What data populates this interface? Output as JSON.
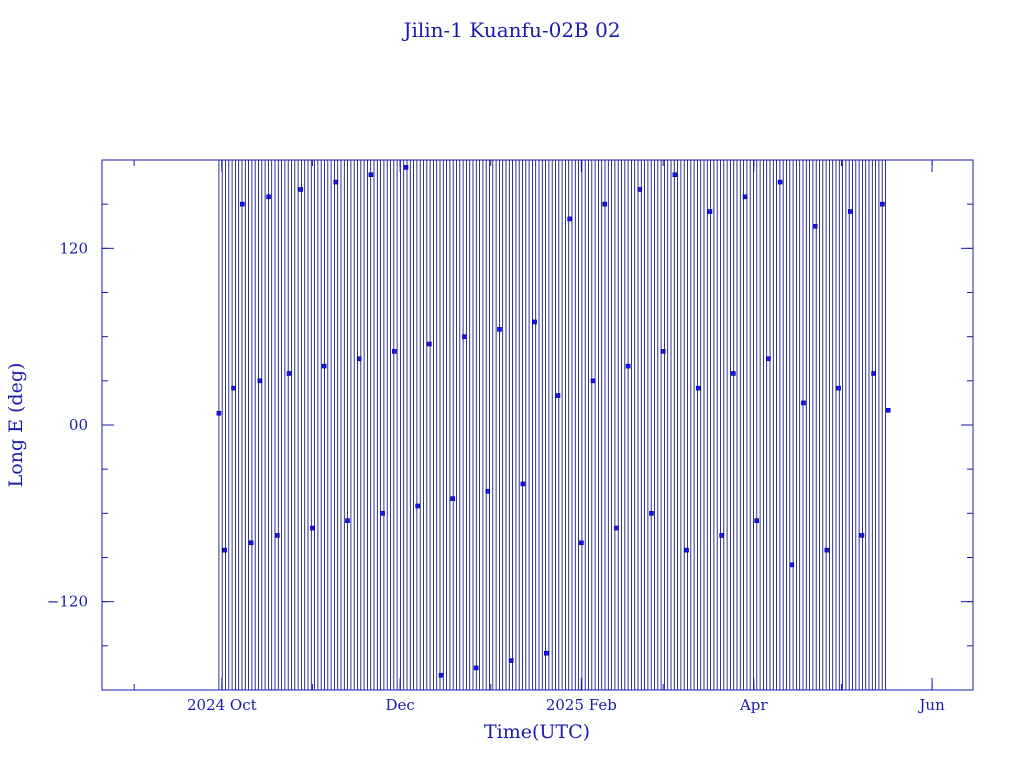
{
  "chart_data": {
    "type": "scatter",
    "title": "Jilin-1 Kuanfu-02B 02",
    "xlabel": "Time(UTC)",
    "ylabel": "Long E (deg)",
    "xlim": [
      "2024-08-21",
      "2025-06-15"
    ],
    "ylim": [
      -180,
      180
    ],
    "x_ticks": [
      {
        "date": "2024-10-01",
        "label": "2024 Oct"
      },
      {
        "date": "2024-12-01",
        "label": "Dec"
      },
      {
        "date": "2025-02-01",
        "label": "2025 Feb"
      },
      {
        "date": "2025-04-01",
        "label": "Apr"
      },
      {
        "date": "2025-06-01",
        "label": "Jun"
      }
    ],
    "y_ticks": [
      {
        "value": 120,
        "label": "120"
      },
      {
        "value": 0,
        "label": "00"
      },
      {
        "value": -120,
        "label": "−120"
      }
    ],
    "series": [
      {
        "start": "2024-09-30",
        "end": "2025-05-17",
        "points": [
          [
            "2024-09-30",
            8
          ],
          [
            "2024-10-02",
            -85
          ],
          [
            "2024-10-05",
            25
          ],
          [
            "2024-10-08",
            150
          ],
          [
            "2024-10-11",
            -80
          ],
          [
            "2024-10-14",
            30
          ],
          [
            "2024-10-17",
            155
          ],
          [
            "2024-10-20",
            -75
          ],
          [
            "2024-10-24",
            35
          ],
          [
            "2024-10-28",
            160
          ],
          [
            "2024-11-01",
            -70
          ],
          [
            "2024-11-05",
            40
          ],
          [
            "2024-11-09",
            165
          ],
          [
            "2024-11-13",
            -65
          ],
          [
            "2024-11-17",
            45
          ],
          [
            "2024-11-21",
            170
          ],
          [
            "2024-11-25",
            -60
          ],
          [
            "2024-11-29",
            50
          ],
          [
            "2024-12-03",
            175
          ],
          [
            "2024-12-07",
            -55
          ],
          [
            "2024-12-11",
            55
          ],
          [
            "2024-12-15",
            -170
          ],
          [
            "2024-12-19",
            -50
          ],
          [
            "2024-12-23",
            60
          ],
          [
            "2024-12-27",
            -165
          ],
          [
            "2024-12-31",
            -45
          ],
          [
            "2025-01-04",
            65
          ],
          [
            "2025-01-08",
            -160
          ],
          [
            "2025-01-12",
            -40
          ],
          [
            "2025-01-16",
            70
          ],
          [
            "2025-01-20",
            -155
          ],
          [
            "2025-01-24",
            20
          ],
          [
            "2025-01-28",
            140
          ],
          [
            "2025-02-01",
            -80
          ],
          [
            "2025-02-05",
            30
          ],
          [
            "2025-02-09",
            150
          ],
          [
            "2025-02-13",
            -70
          ],
          [
            "2025-02-17",
            40
          ],
          [
            "2025-02-21",
            160
          ],
          [
            "2025-02-25",
            -60
          ],
          [
            "2025-03-01",
            50
          ],
          [
            "2025-03-05",
            170
          ],
          [
            "2025-03-09",
            -85
          ],
          [
            "2025-03-13",
            25
          ],
          [
            "2025-03-17",
            145
          ],
          [
            "2025-03-21",
            -75
          ],
          [
            "2025-03-25",
            35
          ],
          [
            "2025-03-29",
            155
          ],
          [
            "2025-04-02",
            -65
          ],
          [
            "2025-04-06",
            45
          ],
          [
            "2025-04-10",
            165
          ],
          [
            "2025-04-14",
            -95
          ],
          [
            "2025-04-18",
            15
          ],
          [
            "2025-04-22",
            135
          ],
          [
            "2025-04-26",
            -85
          ],
          [
            "2025-04-30",
            25
          ],
          [
            "2025-05-04",
            145
          ],
          [
            "2025-05-08",
            -75
          ],
          [
            "2025-05-12",
            35
          ],
          [
            "2025-05-15",
            150
          ],
          [
            "2025-05-17",
            10
          ]
        ]
      }
    ],
    "colors": {
      "frame": "#1a1ab0",
      "trace": "#00007a",
      "marker": "#1515ff"
    }
  }
}
